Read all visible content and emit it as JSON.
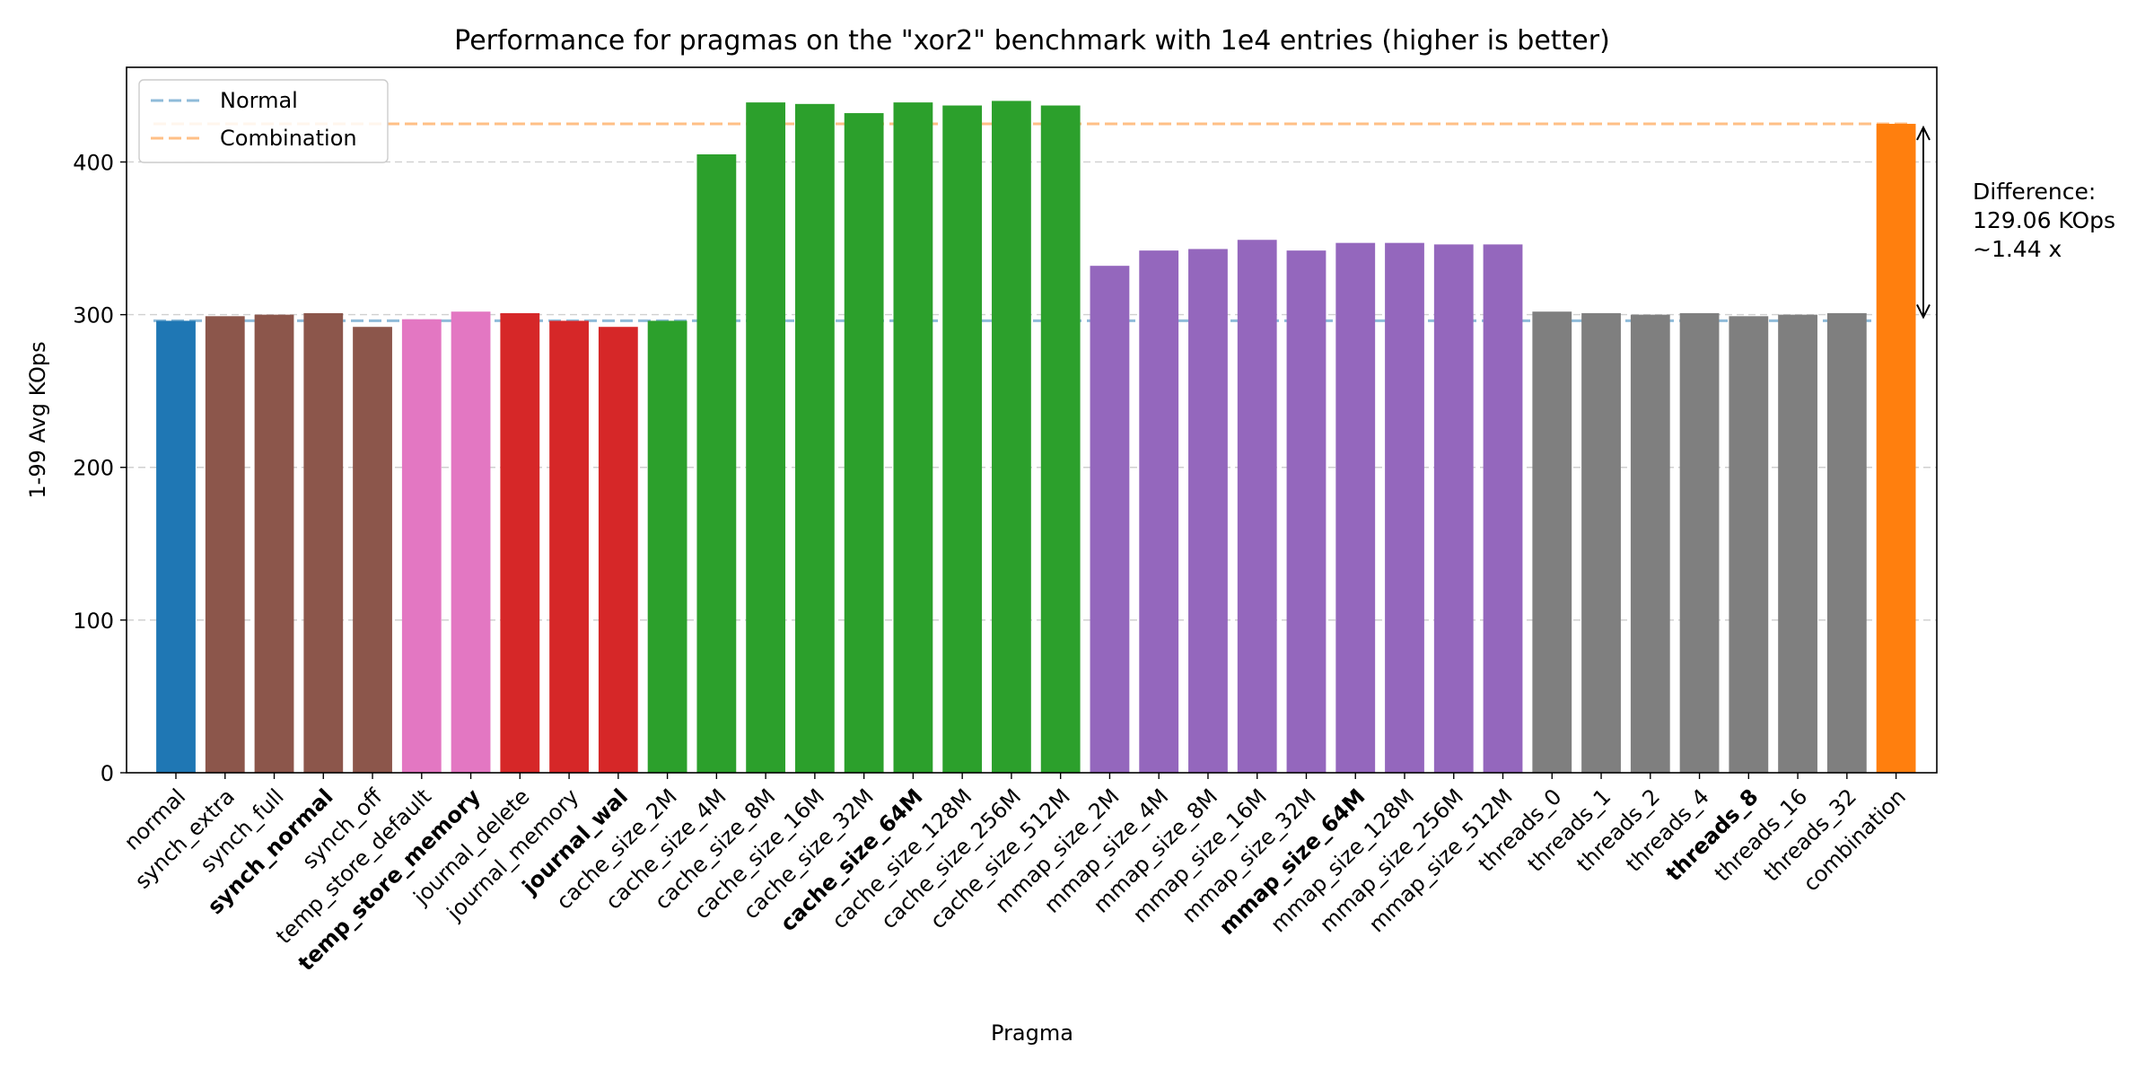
{
  "chart_data": {
    "type": "bar",
    "title": "Performance for pragmas on the \"xor2\" benchmark with 1e4 entries (higher is better)",
    "xlabel": "Pragma",
    "ylabel": "1-99 Avg KOps",
    "ylim": [
      0,
      462
    ],
    "yticks": [
      0,
      100,
      200,
      300,
      400
    ],
    "grid": "horizontal dashed",
    "legend_position": "top-left",
    "categories": [
      "normal",
      "synch_extra",
      "synch_full",
      "synch_normal",
      "synch_off",
      "temp_store_default",
      "temp_store_memory",
      "journal_delete",
      "journal_memory",
      "journal_wal",
      "cache_size_2M",
      "cache_size_4M",
      "cache_size_8M",
      "cache_size_16M",
      "cache_size_32M",
      "cache_size_64M",
      "cache_size_128M",
      "cache_size_256M",
      "cache_size_512M",
      "mmap_size_2M",
      "mmap_size_4M",
      "mmap_size_8M",
      "mmap_size_16M",
      "mmap_size_32M",
      "mmap_size_64M",
      "mmap_size_128M",
      "mmap_size_256M",
      "mmap_size_512M",
      "threads_0",
      "threads_1",
      "threads_2",
      "threads_4",
      "threads_8",
      "threads_16",
      "threads_32",
      "combination"
    ],
    "values": [
      296,
      299,
      300,
      301,
      292,
      297,
      302,
      301,
      296,
      292,
      296,
      405,
      439,
      438,
      432,
      439,
      437,
      440,
      437,
      332,
      342,
      343,
      349,
      342,
      347,
      347,
      346,
      346,
      302,
      301,
      300,
      301,
      299,
      300,
      301,
      425
    ],
    "bold_categories": [
      "synch_normal",
      "temp_store_memory",
      "journal_wal",
      "cache_size_64M",
      "mmap_size_64M",
      "threads_8"
    ],
    "bar_colors": [
      "#1f77b4",
      "#8c564b",
      "#8c564b",
      "#8c564b",
      "#8c564b",
      "#e377c2",
      "#e377c2",
      "#d62728",
      "#d62728",
      "#d62728",
      "#2ca02c",
      "#2ca02c",
      "#2ca02c",
      "#2ca02c",
      "#2ca02c",
      "#2ca02c",
      "#2ca02c",
      "#2ca02c",
      "#2ca02c",
      "#9467bd",
      "#9467bd",
      "#9467bd",
      "#9467bd",
      "#9467bd",
      "#9467bd",
      "#9467bd",
      "#9467bd",
      "#9467bd",
      "#7f7f7f",
      "#7f7f7f",
      "#7f7f7f",
      "#7f7f7f",
      "#7f7f7f",
      "#7f7f7f",
      "#7f7f7f",
      "#ff7f0e"
    ],
    "reference_lines": [
      {
        "name": "Normal",
        "value": 296,
        "color": "#1f77b4"
      },
      {
        "name": "Combination",
        "value": 425,
        "color": "#ff7f0e"
      }
    ],
    "annotation": {
      "lines": [
        "Difference:",
        "129.06 KOps",
        "~1.44 x"
      ],
      "from_value": 296,
      "to_value": 425
    }
  }
}
